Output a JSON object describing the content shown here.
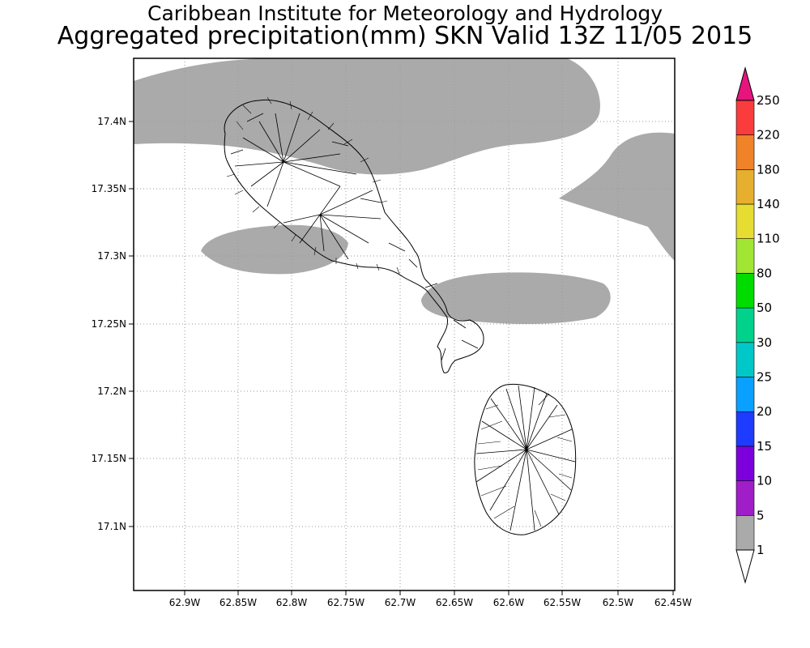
{
  "header": {
    "title": "Caribbean Institute for Meteorology and Hydrology",
    "subtitle": "Aggregated precipitation(mm) SKN Valid 13Z 11/05 2015"
  },
  "map": {
    "lon_ticks": [
      "62.9W",
      "62.85W",
      "62.8W",
      "62.75W",
      "62.7W",
      "62.65W",
      "62.6W",
      "62.55W",
      "62.5W",
      "62.45W"
    ],
    "lat_ticks": [
      "17.4N",
      "17.35N",
      "17.3N",
      "17.25N",
      "17.2N",
      "17.15N",
      "17.1N"
    ],
    "grid": true,
    "islands": [
      "St. Kitts",
      "Nevis"
    ],
    "precip_fill_color": "#aaaaaa",
    "precip_class": "1-5 mm"
  },
  "colorbar": {
    "levels": [
      "1",
      "5",
      "10",
      "15",
      "20",
      "25",
      "30",
      "50",
      "80",
      "110",
      "140",
      "180",
      "220",
      "250"
    ],
    "colors": [
      "#aaaaaa",
      "#a01ec8",
      "#7d00dc",
      "#1e3cff",
      "#0aa0ff",
      "#00c8c8",
      "#00d28c",
      "#00dc00",
      "#a0e632",
      "#e6dc32",
      "#e6af2d",
      "#f08228",
      "#fa3c3c",
      "#e6147d"
    ]
  }
}
